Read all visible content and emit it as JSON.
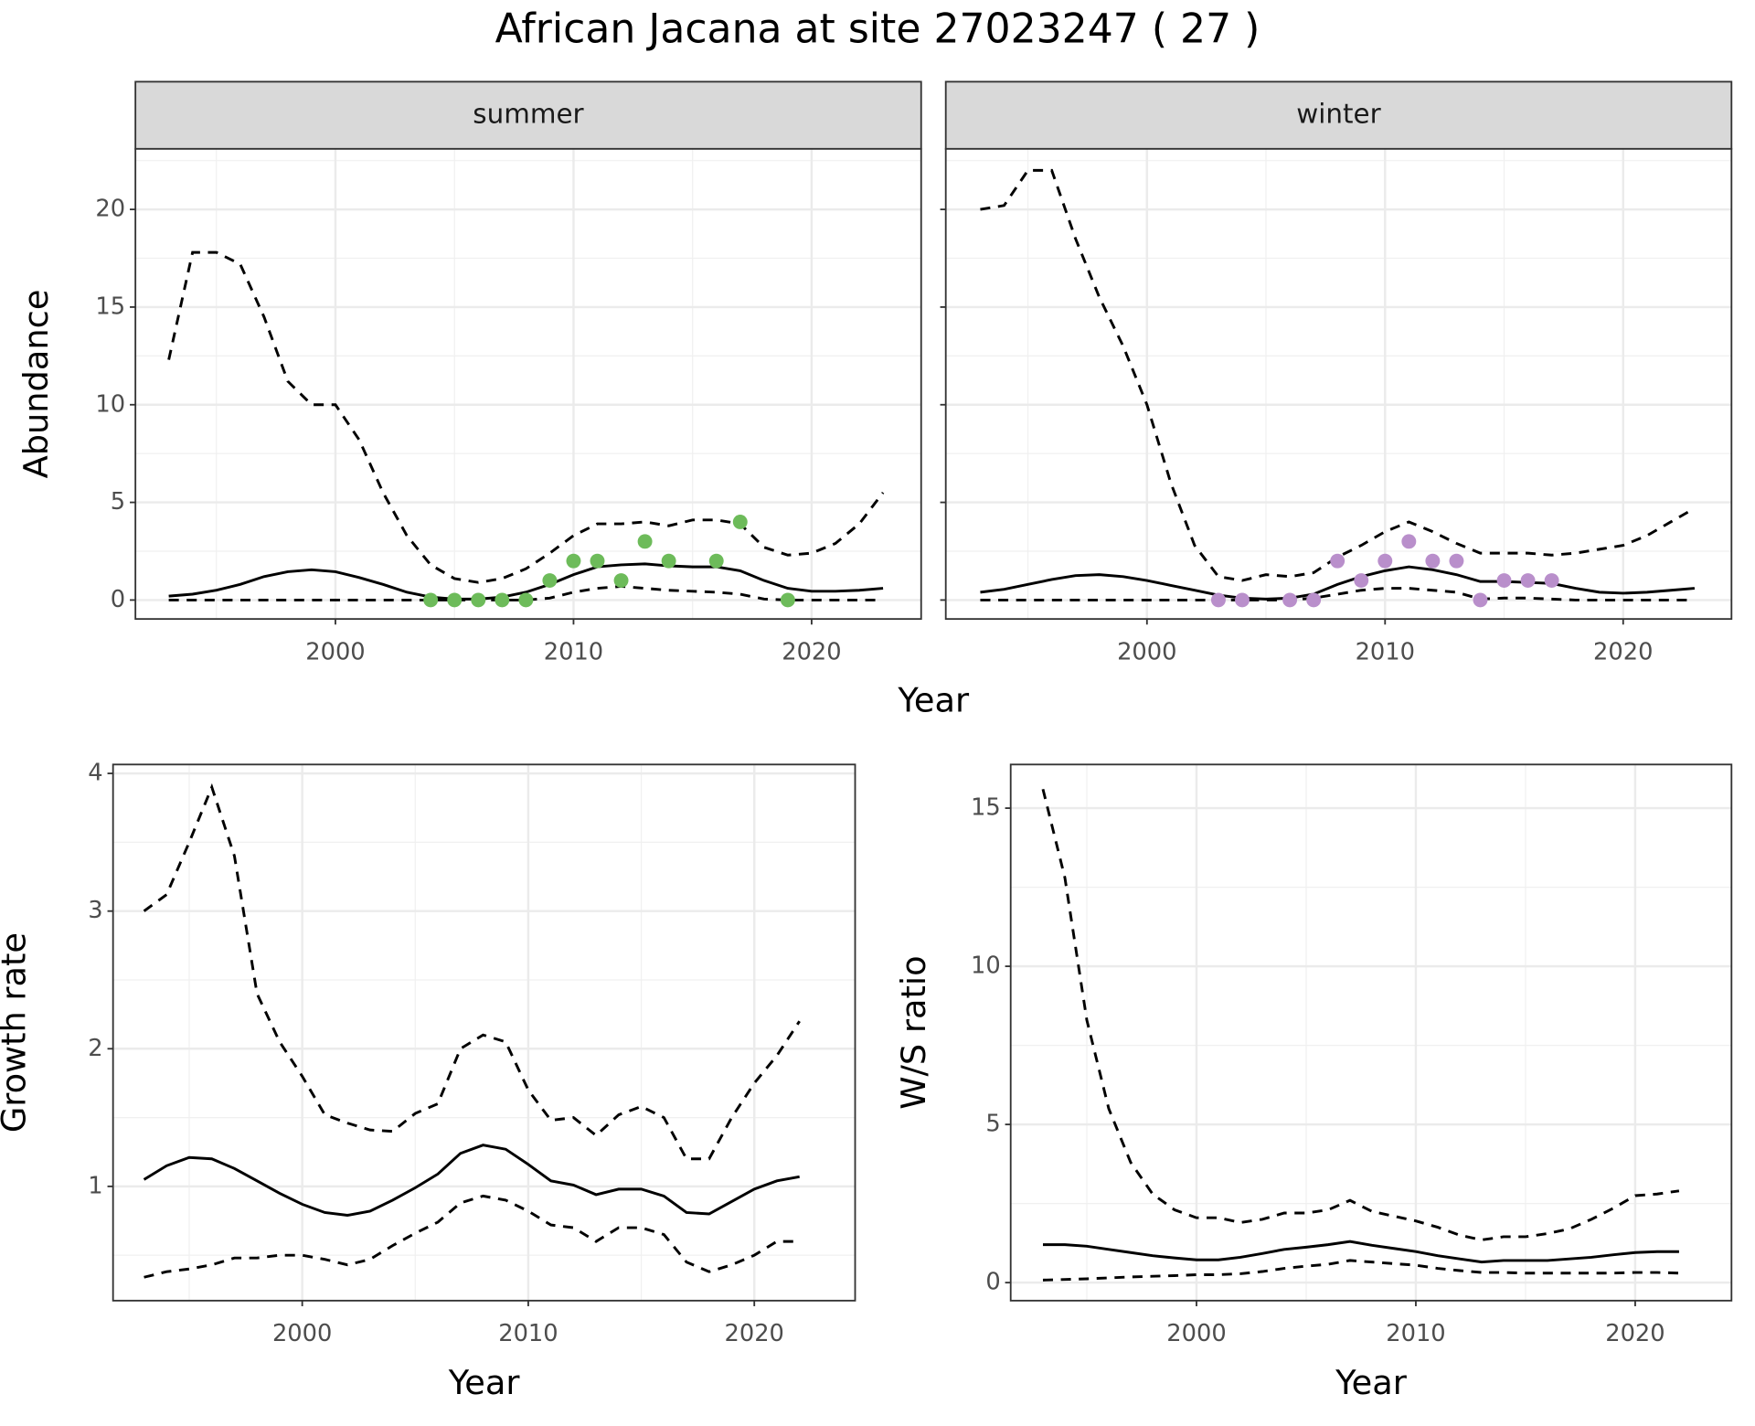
{
  "title": "African Jacana at site 27023247 ( 27 )",
  "shared_xlabel": "Year",
  "chart_data": [
    {
      "type": "line",
      "facet": "summer",
      "ylabel": "Abundance",
      "y_tick_labels": true,
      "grid": true,
      "xlim": [
        1991.6,
        2024.6
      ],
      "xticks": [
        2000,
        2010,
        2020
      ],
      "ylim": [
        -0.97,
        23.1
      ],
      "yticks": [
        0,
        5,
        10,
        15,
        20
      ],
      "x": [
        1993,
        1994,
        1995,
        1996,
        1997,
        1998,
        1999,
        2000,
        2001,
        2002,
        2003,
        2004,
        2005,
        2006,
        2007,
        2008,
        2009,
        2010,
        2011,
        2012,
        2013,
        2014,
        2015,
        2016,
        2017,
        2018,
        2019,
        2020,
        2021,
        2022,
        2023
      ],
      "series": [
        {
          "color": "#000000",
          "dashed": false,
          "values": [
            0.2,
            0.3,
            0.5,
            0.8,
            1.2,
            1.45,
            1.55,
            1.45,
            1.15,
            0.8,
            0.4,
            0.15,
            0.05,
            0.05,
            0.15,
            0.4,
            0.8,
            1.3,
            1.7,
            1.8,
            1.85,
            1.75,
            1.7,
            1.7,
            1.5,
            1.0,
            0.6,
            0.45,
            0.45,
            0.5,
            0.6
          ]
        },
        {
          "color": "#000000",
          "dashed": true,
          "values": [
            0,
            0,
            0,
            0,
            0,
            0,
            0,
            0,
            0,
            0,
            0,
            0,
            0,
            0,
            0,
            0,
            0.1,
            0.4,
            0.6,
            0.7,
            0.6,
            0.5,
            0.45,
            0.4,
            0.3,
            0.05,
            0,
            0,
            0,
            0,
            0
          ]
        },
        {
          "color": "#000000",
          "dashed": true,
          "values": [
            12.3,
            17.8,
            17.8,
            17.2,
            14.5,
            11.2,
            10,
            10,
            8.2,
            5.5,
            3.3,
            1.8,
            1.1,
            0.9,
            1.1,
            1.6,
            2.4,
            3.3,
            3.9,
            3.9,
            4.0,
            3.8,
            4.1,
            4.1,
            3.9,
            2.7,
            2.3,
            2.4,
            2.9,
            3.9,
            5.5
          ]
        }
      ],
      "points": {
        "color": "#6dbb5a",
        "x": [
          2004,
          2005,
          2006,
          2007,
          2008,
          2009,
          2010,
          2011,
          2012,
          2013,
          2014,
          2016,
          2017,
          2019
        ],
        "values": [
          0,
          0,
          0,
          0,
          0,
          1,
          2,
          2,
          1,
          3,
          2,
          2,
          4,
          0
        ]
      }
    },
    {
      "type": "line",
      "facet": "winter",
      "y_tick_labels": false,
      "grid": true,
      "xlim": [
        1991.55,
        2024.55
      ],
      "xticks": [
        2000,
        2010,
        2020
      ],
      "ylim": [
        -0.97,
        23.1
      ],
      "yticks": [
        0,
        5,
        10,
        15,
        20
      ],
      "x": [
        1993,
        1994,
        1995,
        1996,
        1997,
        1998,
        1999,
        2000,
        2001,
        2002,
        2003,
        2004,
        2005,
        2006,
        2007,
        2008,
        2009,
        2010,
        2011,
        2012,
        2013,
        2014,
        2015,
        2016,
        2017,
        2018,
        2019,
        2020,
        2021,
        2022,
        2023
      ],
      "series": [
        {
          "color": "#000000",
          "dashed": false,
          "values": [
            0.4,
            0.55,
            0.8,
            1.05,
            1.25,
            1.3,
            1.2,
            1.0,
            0.75,
            0.5,
            0.25,
            0.1,
            0.05,
            0.1,
            0.3,
            0.8,
            1.2,
            1.5,
            1.7,
            1.55,
            1.3,
            0.95,
            0.95,
            0.9,
            0.85,
            0.6,
            0.4,
            0.35,
            0.4,
            0.5,
            0.6
          ]
        },
        {
          "color": "#000000",
          "dashed": true,
          "values": [
            0,
            0,
            0,
            0,
            0,
            0,
            0,
            0,
            0,
            0,
            0,
            0,
            0,
            0,
            0.1,
            0.3,
            0.5,
            0.6,
            0.6,
            0.5,
            0.4,
            0.05,
            0.1,
            0.1,
            0.05,
            0,
            0,
            0,
            0,
            0,
            0
          ]
        },
        {
          "color": "#000000",
          "dashed": true,
          "values": [
            20,
            20.2,
            22,
            22,
            18.5,
            15.5,
            13,
            10,
            6,
            2.8,
            1.2,
            1.0,
            1.3,
            1.2,
            1.4,
            2.2,
            2.8,
            3.5,
            4.0,
            3.5,
            2.9,
            2.4,
            2.4,
            2.4,
            2.3,
            2.4,
            2.6,
            2.8,
            3.3,
            4.0,
            4.7
          ]
        }
      ],
      "points": {
        "color": "#b98fcb",
        "x": [
          2003,
          2004,
          2006,
          2007,
          2008,
          2009,
          2010,
          2011,
          2012,
          2013,
          2014,
          2015,
          2016,
          2017
        ],
        "values": [
          0,
          0,
          0,
          0,
          2,
          1,
          2,
          3,
          2,
          2,
          0,
          1,
          1,
          1
        ]
      }
    },
    {
      "type": "line",
      "xlabel": "Year",
      "ylabel": "Growth rate",
      "y_tick_labels": true,
      "grid": true,
      "xlim": [
        1991.63,
        2024.46
      ],
      "xticks": [
        2000,
        2010,
        2020
      ],
      "ylim": [
        0.17,
        4.065
      ],
      "yticks": [
        1,
        2,
        3,
        4
      ],
      "x": [
        1993,
        1994,
        1995,
        1996,
        1997,
        1998,
        1999,
        2000,
        2001,
        2002,
        2003,
        2004,
        2005,
        2006,
        2007,
        2008,
        2009,
        2010,
        2011,
        2012,
        2013,
        2014,
        2015,
        2016,
        2017,
        2018,
        2019,
        2020,
        2021,
        2022
      ],
      "series": [
        {
          "color": "#000000",
          "dashed": false,
          "values": [
            1.05,
            1.15,
            1.21,
            1.2,
            1.13,
            1.04,
            0.95,
            0.87,
            0.81,
            0.79,
            0.82,
            0.9,
            0.99,
            1.09,
            1.24,
            1.3,
            1.27,
            1.16,
            1.04,
            1.01,
            0.94,
            0.98,
            0.98,
            0.93,
            0.81,
            0.8,
            0.89,
            0.98,
            1.04,
            1.07
          ]
        },
        {
          "color": "#000000",
          "dashed": true,
          "values": [
            0.34,
            0.38,
            0.4,
            0.43,
            0.48,
            0.48,
            0.5,
            0.5,
            0.47,
            0.43,
            0.47,
            0.57,
            0.66,
            0.74,
            0.88,
            0.93,
            0.9,
            0.82,
            0.72,
            0.7,
            0.6,
            0.7,
            0.7,
            0.65,
            0.45,
            0.38,
            0.43,
            0.5,
            0.6,
            0.6
          ]
        },
        {
          "color": "#000000",
          "dashed": true,
          "values": [
            3.0,
            3.12,
            3.5,
            3.9,
            3.4,
            2.4,
            2.05,
            1.8,
            1.52,
            1.46,
            1.41,
            1.4,
            1.53,
            1.6,
            2.0,
            2.1,
            2.05,
            1.7,
            1.48,
            1.5,
            1.37,
            1.52,
            1.58,
            1.5,
            1.2,
            1.2,
            1.5,
            1.75,
            1.95,
            2.2
          ]
        }
      ]
    },
    {
      "type": "line",
      "xlabel": "Year",
      "ylabel": "W/S ratio",
      "y_tick_labels": true,
      "grid": true,
      "xlim": [
        1991.53,
        2024.39
      ],
      "xticks": [
        2000,
        2010,
        2020
      ],
      "ylim": [
        -0.57,
        16.38
      ],
      "yticks": [
        0,
        5,
        10,
        15
      ],
      "x": [
        1993,
        1994,
        1995,
        1996,
        1997,
        1998,
        1999,
        2000,
        2001,
        2002,
        2003,
        2004,
        2005,
        2006,
        2007,
        2008,
        2009,
        2010,
        2011,
        2012,
        2013,
        2014,
        2015,
        2016,
        2017,
        2018,
        2019,
        2020,
        2021,
        2022
      ],
      "series": [
        {
          "color": "#000000",
          "dashed": false,
          "values": [
            1.2,
            1.2,
            1.15,
            1.05,
            0.95,
            0.85,
            0.78,
            0.72,
            0.72,
            0.8,
            0.92,
            1.05,
            1.12,
            1.2,
            1.3,
            1.18,
            1.08,
            0.98,
            0.85,
            0.75,
            0.65,
            0.7,
            0.7,
            0.7,
            0.75,
            0.8,
            0.88,
            0.95,
            0.98,
            0.98
          ]
        },
        {
          "color": "#000000",
          "dashed": true,
          "values": [
            0.08,
            0.1,
            0.12,
            0.15,
            0.18,
            0.2,
            0.22,
            0.25,
            0.25,
            0.28,
            0.35,
            0.45,
            0.52,
            0.58,
            0.7,
            0.65,
            0.6,
            0.55,
            0.45,
            0.38,
            0.32,
            0.32,
            0.3,
            0.3,
            0.3,
            0.3,
            0.3,
            0.32,
            0.32,
            0.3
          ]
        },
        {
          "color": "#000000",
          "dashed": true,
          "values": [
            15.6,
            12.8,
            8.3,
            5.5,
            3.8,
            2.8,
            2.3,
            2.05,
            2.05,
            1.9,
            2.0,
            2.2,
            2.2,
            2.3,
            2.6,
            2.25,
            2.1,
            1.95,
            1.75,
            1.5,
            1.35,
            1.45,
            1.45,
            1.55,
            1.7,
            2.0,
            2.35,
            2.75,
            2.8,
            2.9
          ]
        }
      ]
    }
  ]
}
